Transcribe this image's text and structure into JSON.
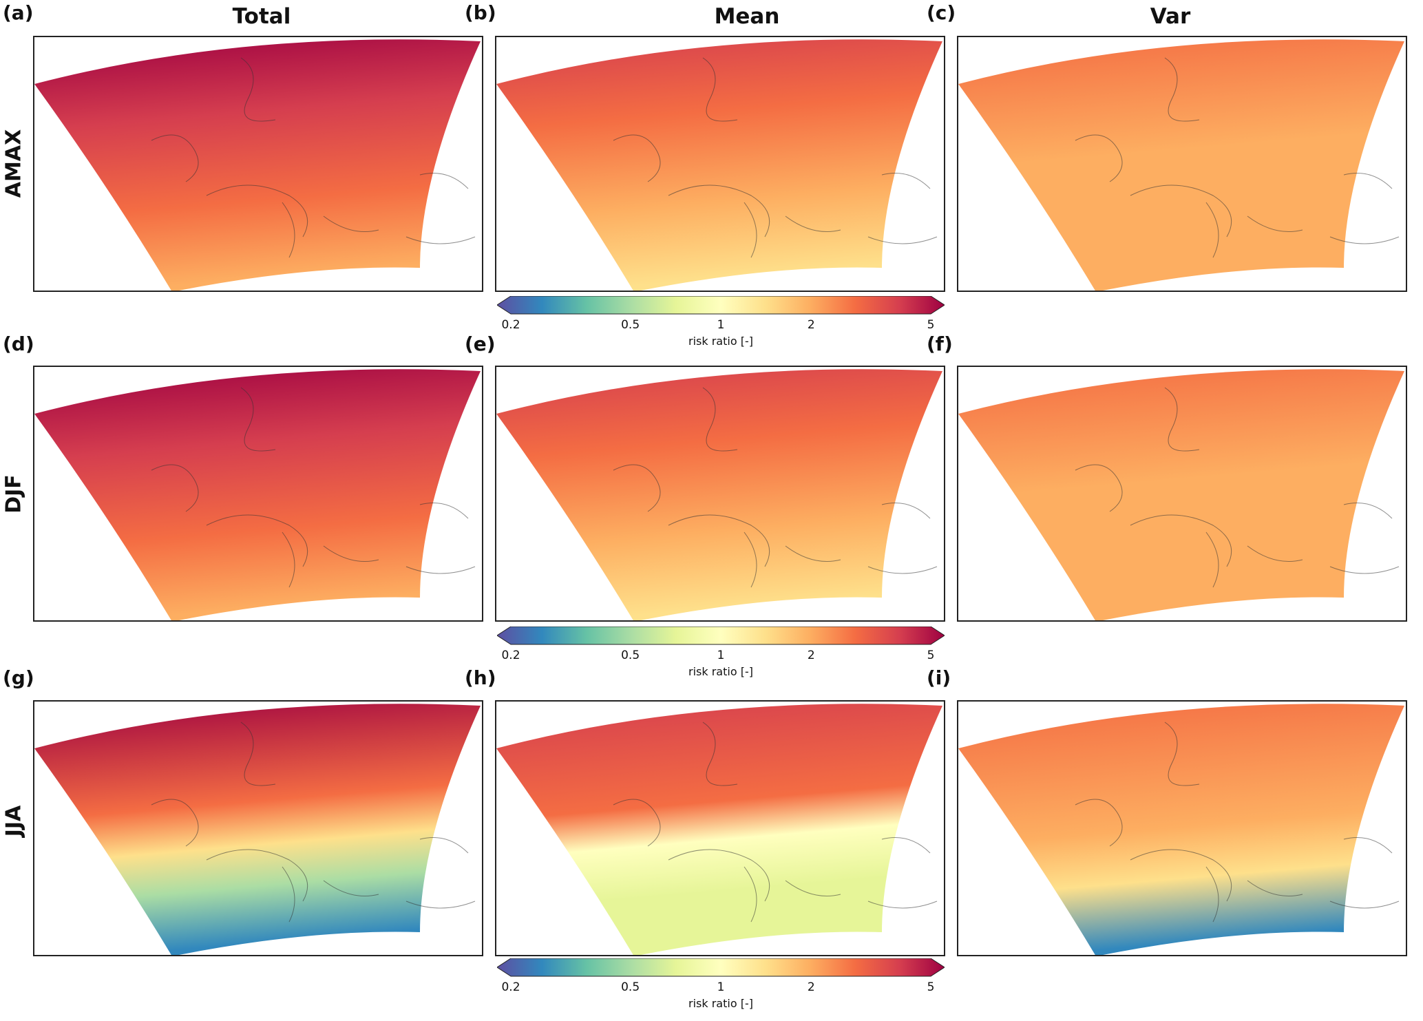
{
  "columns": [
    {
      "title": "Total"
    },
    {
      "title": "Mean"
    },
    {
      "title": "Var"
    }
  ],
  "rows": [
    {
      "label": "AMAX",
      "panels": [
        "(a)",
        "(b)",
        "(c)"
      ],
      "fills": [
        "high",
        "mid",
        "var"
      ]
    },
    {
      "label": "DJF",
      "panels": [
        "(d)",
        "(e)",
        "(f)"
      ],
      "fills": [
        "high",
        "mid",
        "var"
      ]
    },
    {
      "label": "JJA",
      "panels": [
        "(g)",
        "(h)",
        "(i)"
      ],
      "fills": [
        "split",
        "splitmid",
        "splitvar"
      ]
    }
  ],
  "colorbar": {
    "ticks": [
      "0.2",
      "0.5",
      "1",
      "2",
      "5"
    ],
    "label": "risk ratio [-]",
    "scale": "log",
    "range": [
      0.2,
      5
    ],
    "colors": [
      "#5e4fa2",
      "#3288bd",
      "#66c2a5",
      "#abdda4",
      "#e6f598",
      "#ffffbf",
      "#fee08b",
      "#fdae61",
      "#f46d43",
      "#d53e4f",
      "#9e0142"
    ]
  }
}
